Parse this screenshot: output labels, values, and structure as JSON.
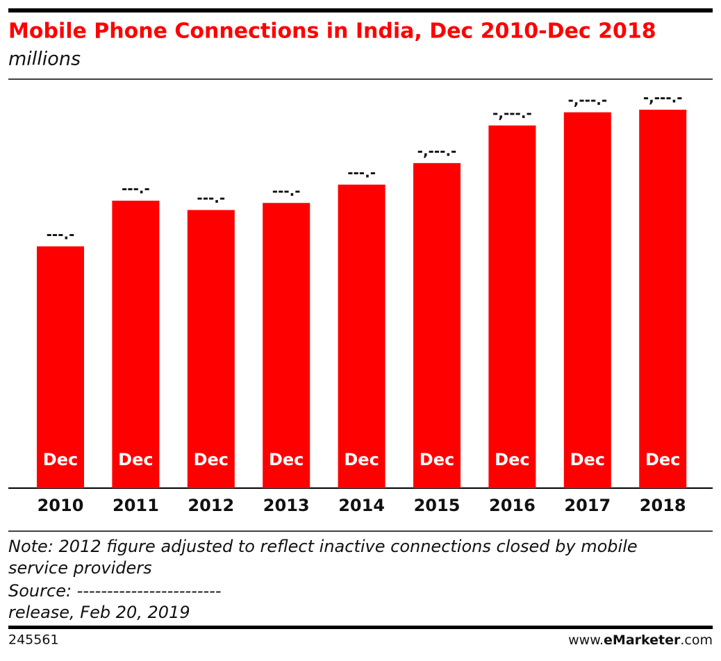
{
  "chart_data": {
    "type": "bar",
    "title": "Mobile Phone Connections in India, Dec 2010-Dec 2018",
    "subtitle": "millions",
    "categories": [
      "2010",
      "2011",
      "2012",
      "2013",
      "2014",
      "2015",
      "2016",
      "2017",
      "2018"
    ],
    "values": [
      752,
      894,
      865,
      887,
      944,
      1011,
      1128,
      1169,
      1177
    ],
    "value_labels": [
      "---.-",
      "---.-",
      "---.-",
      "---.-",
      "---.-",
      "-,---.-",
      "-,---.-",
      "-,---.-",
      "-,---.-"
    ],
    "bar_label": "Dec",
    "color": "#ff0000",
    "note": [
      "Note: 2012 figure adjusted to reflect inactive connections closed by mobile",
      "service providers",
      "Source: ------------------------",
      "release, Feb 20, 2019"
    ],
    "chart_id": "245561",
    "site": [
      "www.",
      "eMarketer",
      ".com"
    ]
  }
}
